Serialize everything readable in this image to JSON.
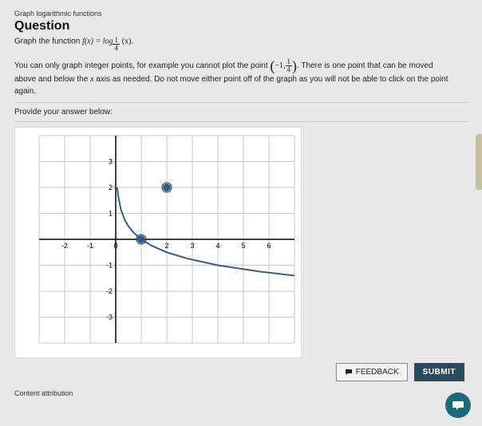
{
  "breadcrumb": "Graph logarithmic functions",
  "title": "Question",
  "prompt_prefix": "Graph the function ",
  "prompt_fx": "f(x) = log",
  "prompt_base_num": "1",
  "prompt_base_den": "4",
  "prompt_arg": "(x).",
  "instr_p1": "You can only graph integer points, for example you cannot plot the point ",
  "instr_pt_a": "−1,",
  "instr_pt_num": "1",
  "instr_pt_den": "4",
  "instr_p2": ". There is one point that can be moved",
  "instr_p3": "above and below the ",
  "instr_axis": "x",
  "instr_p4": " axis as needed. Do not move either point off of the graph as you will not be able to click on the point again.",
  "provide": "Provide your answer below:",
  "feedback_label": "FEEDBACK",
  "submit_label": "SUBMIT",
  "content_attribution": "Content attribution",
  "chart": {
    "type": "line",
    "background_color": "#ffffff",
    "grid_color": "#c9c9c9",
    "axis_color": "#000000",
    "curve_color": "#395a8f",
    "curve_width": 2,
    "point_fill": "#2c5a87",
    "point_stroke": "#1a3858",
    "point_radius": 5,
    "xlim": [
      -3,
      7
    ],
    "ylim": [
      -4,
      4
    ],
    "xtick_step": 1,
    "ytick_step": 1,
    "xtick_labels": [
      -2,
      -1,
      0,
      2,
      3,
      4,
      5,
      6
    ],
    "ytick_labels": [
      -3,
      -2,
      -1,
      1,
      2,
      3
    ],
    "label_fontsize": 9,
    "asymptote_x": 0,
    "curve_points": [
      [
        0.06,
        2.0
      ],
      [
        0.1,
        1.66
      ],
      [
        0.2,
        1.16
      ],
      [
        0.35,
        0.76
      ],
      [
        0.5,
        0.5
      ],
      [
        0.7,
        0.26
      ],
      [
        1.0,
        0.0
      ],
      [
        1.4,
        -0.24
      ],
      [
        2.0,
        -0.5
      ],
      [
        2.8,
        -0.74
      ],
      [
        4.0,
        -1.0
      ],
      [
        5.6,
        -1.24
      ],
      [
        7.0,
        -1.4
      ]
    ],
    "movable_points": [
      {
        "x": 1,
        "y": 0
      },
      {
        "x": 2,
        "y": 2
      }
    ]
  }
}
